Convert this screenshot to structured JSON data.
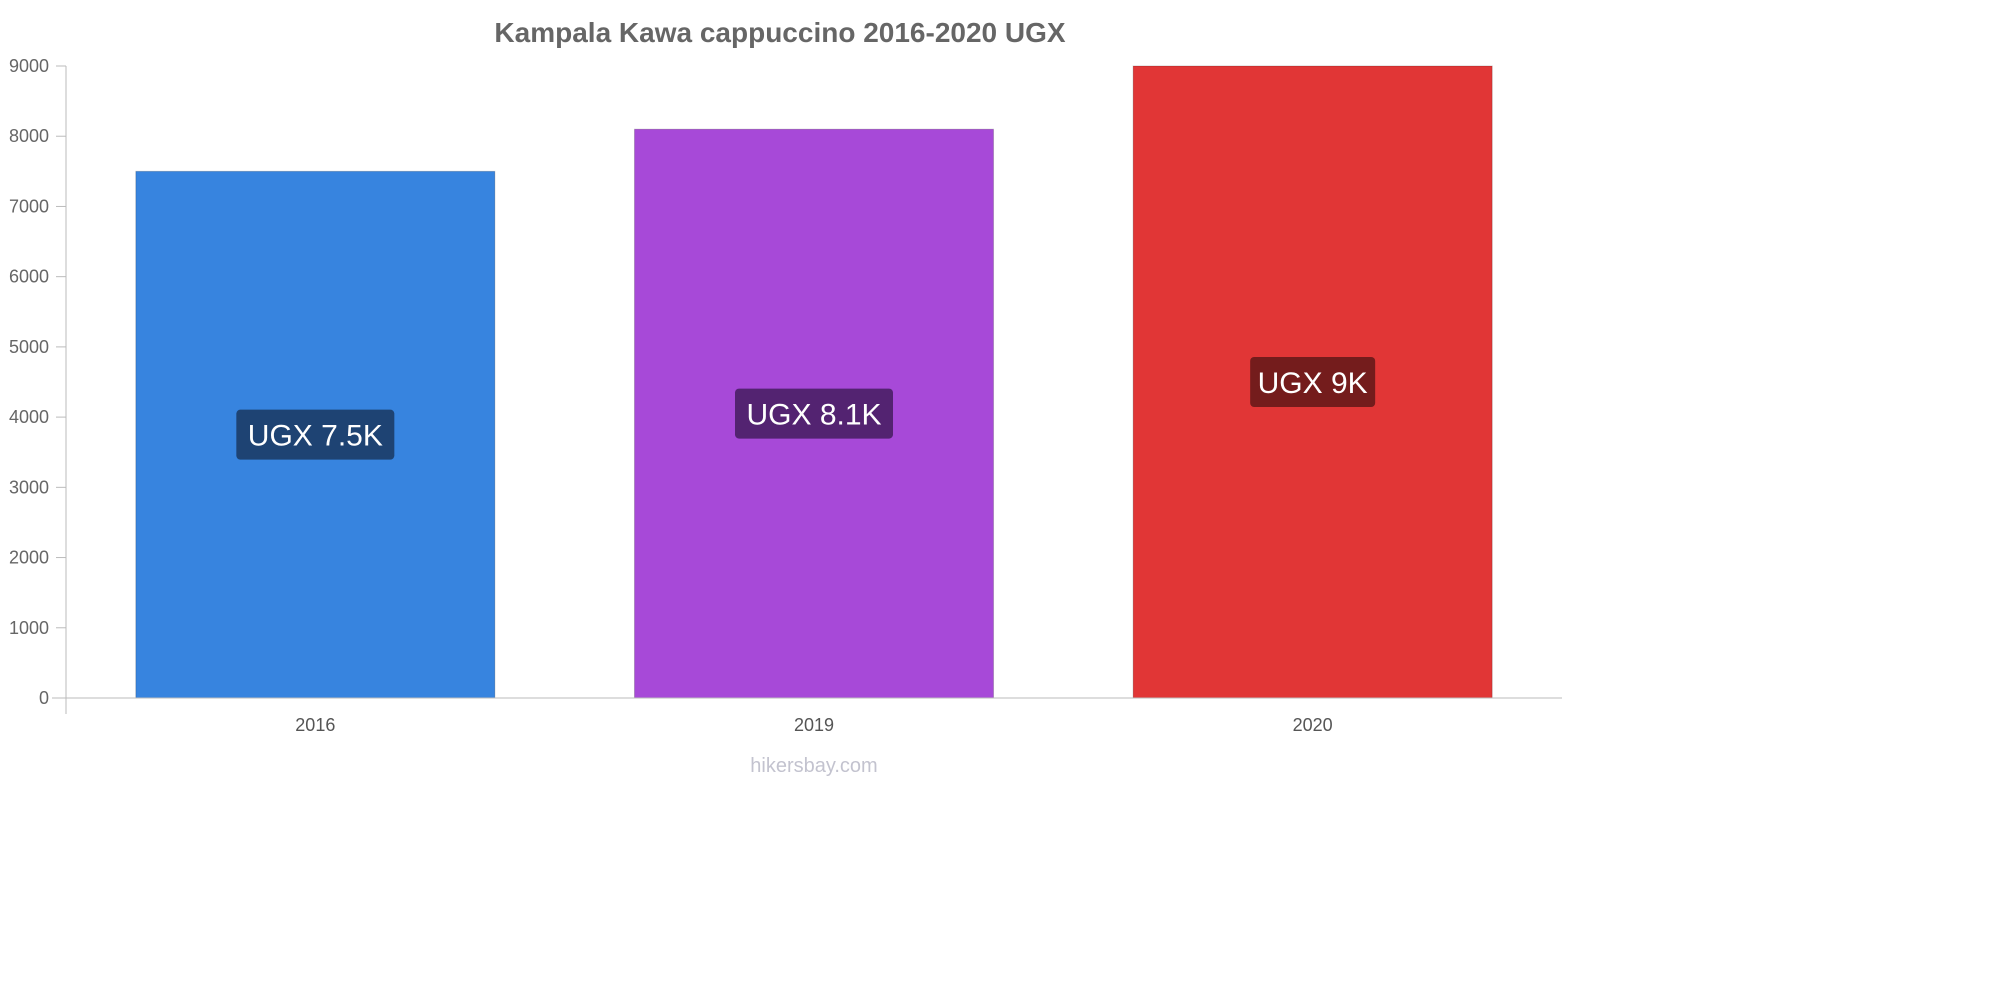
{
  "chart_data": {
    "type": "bar",
    "title": "Kampala Kawa cappuccino 2016-2020 UGX",
    "categories": [
      "2016",
      "2019",
      "2020"
    ],
    "values": [
      7500,
      8100,
      9000
    ],
    "value_labels": [
      "UGX 7.5K",
      "UGX 8.1K",
      "UGX 9K"
    ],
    "bar_colors": [
      "#3784df",
      "#a749d8",
      "#e13636"
    ],
    "label_colors": [
      "#1e4373",
      "#532371",
      "#741c1c"
    ],
    "ylim": [
      0,
      9000
    ],
    "yticks": [
      0,
      1000,
      2000,
      3000,
      4000,
      5000,
      6000,
      7000,
      8000,
      9000
    ],
    "xlabel": "",
    "ylabel": "",
    "grid": false,
    "legend": "none"
  },
  "source": "hikersbay.com",
  "colors": {
    "axis": "#bbbbbb",
    "text": "#666666"
  }
}
